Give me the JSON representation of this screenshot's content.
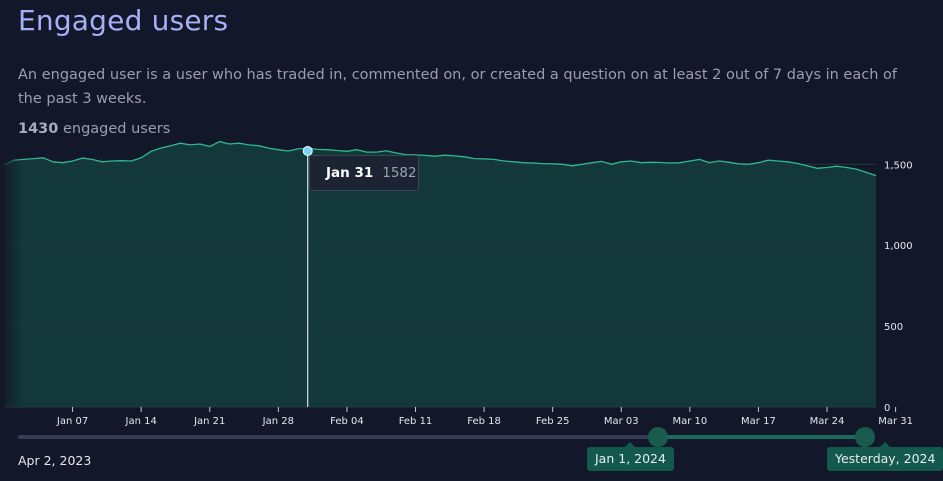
{
  "page": {
    "title": "Engaged users",
    "description": "An engaged user is a user who has traded in, commented on, or created a question on at least 2 out of 7 days in each of the past 3 weeks.",
    "count": "1430",
    "count_suffix": " engaged users"
  },
  "tooltip": {
    "date": "Jan 31",
    "value": "1582"
  },
  "range": {
    "start_label": "Apr 2, 2023",
    "selected_start": "Jan 1, 2024",
    "selected_end": "Yesterday, 2024",
    "start_fraction": 0.755,
    "end_fraction": 1.0
  },
  "colors": {
    "line": "#2fb891",
    "fill": "#12383a",
    "grid": "#1f3a3f",
    "hover": "#7ad3ff",
    "text": "#c9cbd6"
  },
  "chart_data": {
    "type": "area",
    "xlabel": "",
    "ylabel": "",
    "ylim": [
      0,
      1650
    ],
    "y_ticks": [
      {
        "value": 0,
        "label": "0"
      },
      {
        "value": 500,
        "label": "500"
      },
      {
        "value": 1000,
        "label": "1,000"
      },
      {
        "value": 1500,
        "label": "1,500"
      }
    ],
    "x_ticks": [
      "Jan 07",
      "Jan 14",
      "Jan 21",
      "Jan 28",
      "Feb 04",
      "Feb 11",
      "Feb 18",
      "Feb 25",
      "Mar 03",
      "Mar 10",
      "Mar 17",
      "Mar 24",
      "Mar 31"
    ],
    "grid": true,
    "hover_date": "Jan 31",
    "series": [
      {
        "x_start": "Dec 31",
        "x_end": "Mar 30",
        "values": [
          1495,
          1525,
          1530,
          1535,
          1540,
          1515,
          1510,
          1520,
          1538,
          1530,
          1515,
          1520,
          1522,
          1520,
          1540,
          1580,
          1600,
          1615,
          1630,
          1620,
          1625,
          1610,
          1640,
          1625,
          1630,
          1620,
          1615,
          1600,
          1590,
          1582,
          1595,
          1600,
          1592,
          1590,
          1585,
          1580,
          1590,
          1575,
          1575,
          1583,
          1570,
          1560,
          1558,
          1555,
          1550,
          1556,
          1552,
          1546,
          1535,
          1533,
          1530,
          1520,
          1515,
          1510,
          1508,
          1504,
          1503,
          1500,
          1490,
          1500,
          1510,
          1518,
          1500,
          1515,
          1520,
          1510,
          1512,
          1511,
          1508,
          1510,
          1520,
          1530,
          1510,
          1520,
          1512,
          1503,
          1500,
          1510,
          1525,
          1520,
          1515,
          1505,
          1490,
          1475,
          1480,
          1488,
          1480,
          1470,
          1450,
          1430
        ]
      }
    ]
  }
}
